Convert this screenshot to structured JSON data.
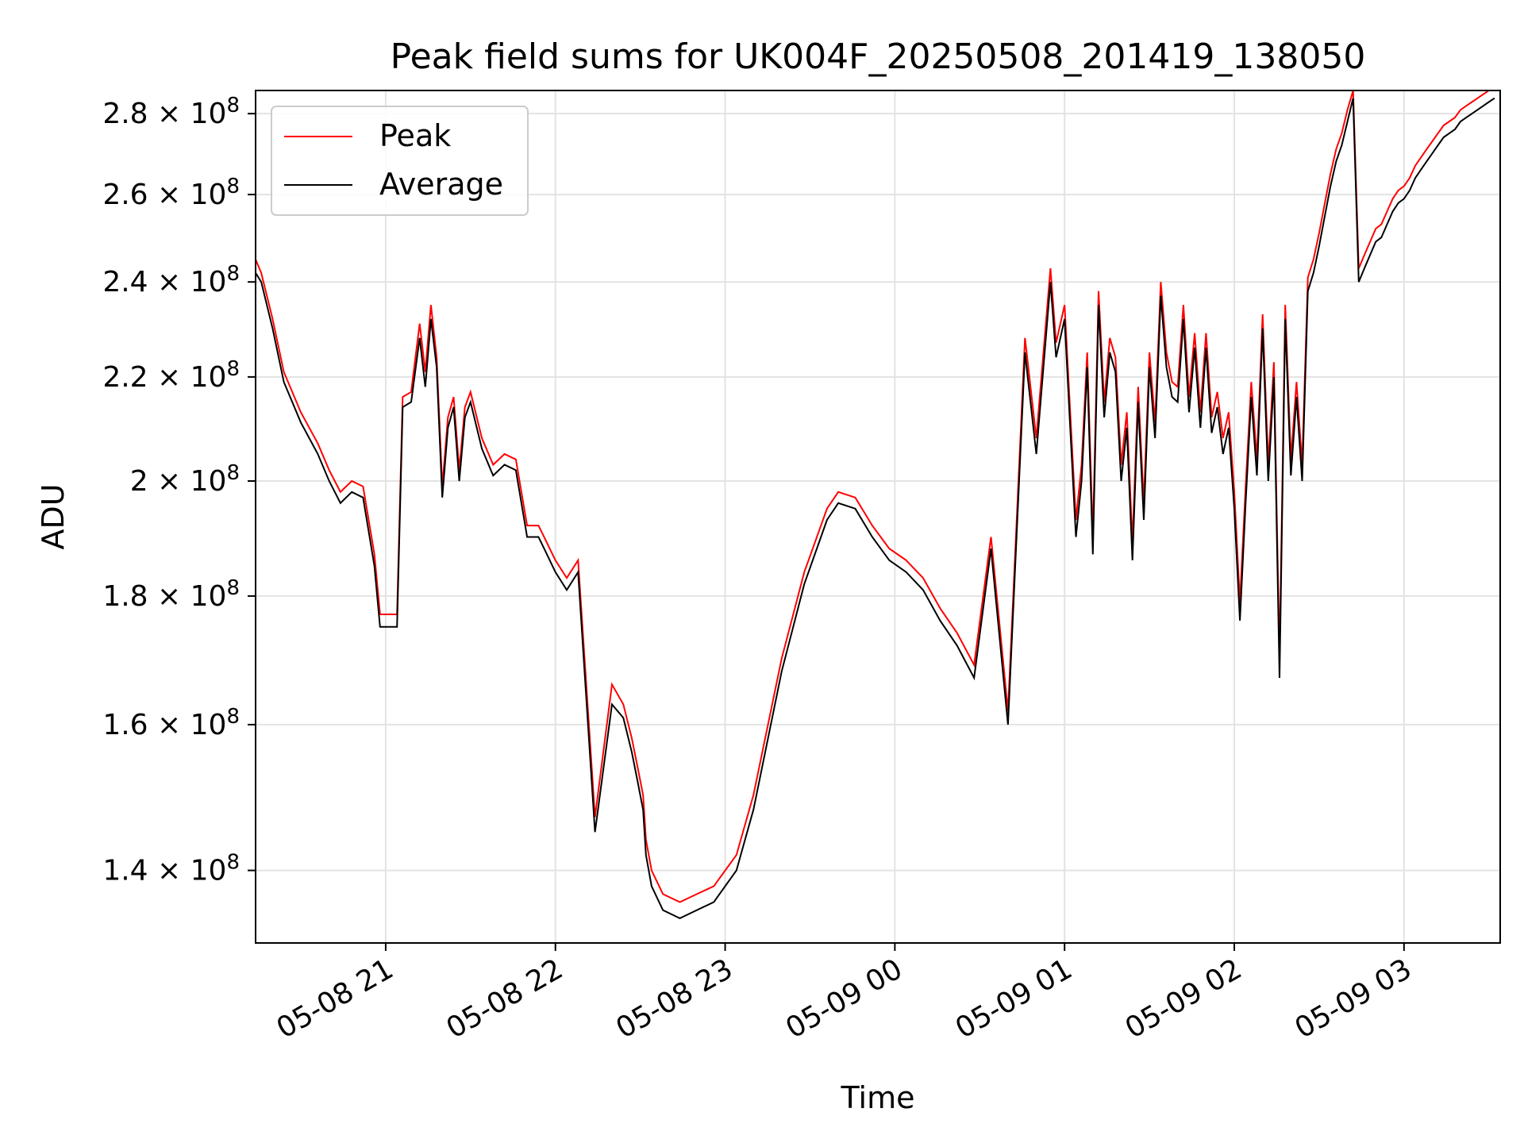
{
  "chart_data": {
    "type": "line",
    "title": "Peak field sums for UK004F_20250508_201419_138050",
    "xlabel": "Time",
    "ylabel": "ADU",
    "y_scale": "log",
    "xlim": [
      "2025-05-08 20:14",
      "2025-05-09 03:34"
    ],
    "ylim": [
      131000000,
      286000000
    ],
    "grid": true,
    "legend_position": "upper-left",
    "x_ticks": [
      {
        "label": "05-08 21",
        "time": "2025-05-08 21:00"
      },
      {
        "label": "05-08 22",
        "time": "2025-05-08 22:00"
      },
      {
        "label": "05-08 23",
        "time": "2025-05-08 23:00"
      },
      {
        "label": "05-09 00",
        "time": "2025-05-09 00:00"
      },
      {
        "label": "05-09 01",
        "time": "2025-05-09 01:00"
      },
      {
        "label": "05-09 02",
        "time": "2025-05-09 02:00"
      },
      {
        "label": "05-09 03",
        "time": "2025-05-09 03:00"
      }
    ],
    "y_ticks": [
      {
        "mantissa": "1.4",
        "exp": "8",
        "value": 140000000
      },
      {
        "mantissa": "1.6",
        "exp": "8",
        "value": 160000000
      },
      {
        "mantissa": "1.8",
        "exp": "8",
        "value": 180000000
      },
      {
        "mantissa": "2",
        "exp": "8",
        "value": 200000000
      },
      {
        "mantissa": "2.2",
        "exp": "8",
        "value": 220000000
      },
      {
        "mantissa": "2.4",
        "exp": "8",
        "value": 240000000
      },
      {
        "mantissa": "2.6",
        "exp": "8",
        "value": 260000000
      },
      {
        "mantissa": "2.8",
        "exp": "8",
        "value": 280000000
      }
    ],
    "series": [
      {
        "name": "Peak",
        "color": "#ff0000"
      },
      {
        "name": "Average",
        "color": "#000000"
      }
    ],
    "x": [
      "2025-05-08 20:14",
      "2025-05-08 20:16",
      "2025-05-08 20:20",
      "2025-05-08 20:24",
      "2025-05-08 20:30",
      "2025-05-08 20:36",
      "2025-05-08 20:40",
      "2025-05-08 20:44",
      "2025-05-08 20:48",
      "2025-05-08 20:52",
      "2025-05-08 20:56",
      "2025-05-08 20:58",
      "2025-05-08 21:04",
      "2025-05-08 21:06",
      "2025-05-08 21:09",
      "2025-05-08 21:12",
      "2025-05-08 21:14",
      "2025-05-08 21:16",
      "2025-05-08 21:18",
      "2025-05-08 21:20",
      "2025-05-08 21:22",
      "2025-05-08 21:24",
      "2025-05-08 21:26",
      "2025-05-08 21:28",
      "2025-05-08 21:30",
      "2025-05-08 21:34",
      "2025-05-08 21:38",
      "2025-05-08 21:42",
      "2025-05-08 21:46",
      "2025-05-08 21:50",
      "2025-05-08 21:54",
      "2025-05-08 21:56",
      "2025-05-08 22:00",
      "2025-05-08 22:04",
      "2025-05-08 22:08",
      "2025-05-08 22:14",
      "2025-05-08 22:20",
      "2025-05-08 22:24",
      "2025-05-08 22:27",
      "2025-05-08 22:29",
      "2025-05-08 22:31",
      "2025-05-08 22:32",
      "2025-05-08 22:34",
      "2025-05-08 22:38",
      "2025-05-08 22:44",
      "2025-05-08 22:50",
      "2025-05-08 22:56",
      "2025-05-08 23:04",
      "2025-05-08 23:10",
      "2025-05-08 23:20",
      "2025-05-08 23:28",
      "2025-05-08 23:36",
      "2025-05-08 23:40",
      "2025-05-08 23:46",
      "2025-05-08 23:52",
      "2025-05-08 23:58",
      "2025-05-09 00:04",
      "2025-05-09 00:10",
      "2025-05-09 00:16",
      "2025-05-09 00:22",
      "2025-05-09 00:28",
      "2025-05-09 00:34",
      "2025-05-09 00:40",
      "2025-05-09 00:46",
      "2025-05-09 00:50",
      "2025-05-09 00:55",
      "2025-05-09 00:57",
      "2025-05-09 01:00",
      "2025-05-09 01:02",
      "2025-05-09 01:04",
      "2025-05-09 01:06",
      "2025-05-09 01:08",
      "2025-05-09 01:10",
      "2025-05-09 01:12",
      "2025-05-09 01:14",
      "2025-05-09 01:16",
      "2025-05-09 01:18",
      "2025-05-09 01:20",
      "2025-05-09 01:22",
      "2025-05-09 01:24",
      "2025-05-09 01:26",
      "2025-05-09 01:28",
      "2025-05-09 01:30",
      "2025-05-09 01:32",
      "2025-05-09 01:34",
      "2025-05-09 01:36",
      "2025-05-09 01:38",
      "2025-05-09 01:40",
      "2025-05-09 01:42",
      "2025-05-09 01:44",
      "2025-05-09 01:46",
      "2025-05-09 01:48",
      "2025-05-09 01:50",
      "2025-05-09 01:52",
      "2025-05-09 01:54",
      "2025-05-09 01:56",
      "2025-05-09 01:58",
      "2025-05-09 02:00",
      "2025-05-09 02:02",
      "2025-05-09 02:04",
      "2025-05-09 02:06",
      "2025-05-09 02:08",
      "2025-05-09 02:10",
      "2025-05-09 02:12",
      "2025-05-09 02:14",
      "2025-05-09 02:16",
      "2025-05-09 02:18",
      "2025-05-09 02:20",
      "2025-05-09 02:22",
      "2025-05-09 02:24",
      "2025-05-09 02:26",
      "2025-05-09 02:28",
      "2025-05-09 02:30",
      "2025-05-09 02:32",
      "2025-05-09 02:34",
      "2025-05-09 02:36",
      "2025-05-09 02:38",
      "2025-05-09 02:40",
      "2025-05-09 02:42",
      "2025-05-09 02:44",
      "2025-05-09 02:46",
      "2025-05-09 02:48",
      "2025-05-09 02:50",
      "2025-05-09 02:52",
      "2025-05-09 02:54",
      "2025-05-09 02:56",
      "2025-05-09 02:58",
      "2025-05-09 03:00",
      "2025-05-09 03:02",
      "2025-05-09 03:04",
      "2025-05-09 03:06",
      "2025-05-09 03:08",
      "2025-05-09 03:10",
      "2025-05-09 03:12",
      "2025-05-09 03:14",
      "2025-05-09 03:16",
      "2025-05-09 03:18",
      "2025-05-09 03:19",
      "2025-05-09 03:20",
      "2025-05-09 03:22",
      "2025-05-09 03:24",
      "2025-05-09 03:26",
      "2025-05-09 03:28",
      "2025-05-09 03:30",
      "2025-05-09 03:32",
      "2025-05-09 03:34"
    ],
    "average": [
      242000000,
      240000000,
      230000000,
      219000000,
      211000000,
      205000000,
      200000000,
      196000000,
      198000000,
      197000000,
      185000000,
      175000000,
      175000000,
      214000000,
      215000000,
      228000000,
      218000000,
      232000000,
      222000000,
      197000000,
      210000000,
      214000000,
      200000000,
      212000000,
      215000000,
      206000000,
      201000000,
      203000000,
      202000000,
      190000000,
      190000000,
      188000000,
      184000000,
      181000000,
      184000000,
      145000000,
      163000000,
      161000000,
      156000000,
      152000000,
      148000000,
      142000000,
      138000000,
      135000000,
      134000000,
      135000000,
      136000000,
      140000000,
      148000000,
      168000000,
      182000000,
      193000000,
      196000000,
      195000000,
      190000000,
      186000000,
      184000000,
      181000000,
      176000000,
      172000000,
      167000000,
      188000000,
      160000000,
      225000000,
      205000000,
      240000000,
      224000000,
      232000000,
      210000000,
      190000000,
      200000000,
      222000000,
      187000000,
      235000000,
      212000000,
      225000000,
      221000000,
      200000000,
      210000000,
      186000000,
      215000000,
      193000000,
      222000000,
      208000000,
      237000000,
      222000000,
      216000000,
      215000000,
      232000000,
      213000000,
      226000000,
      210000000,
      226000000,
      209000000,
      214000000,
      205000000,
      210000000,
      195000000,
      176000000,
      196000000,
      216000000,
      201000000,
      230000000,
      200000000,
      220000000,
      167000000,
      232000000,
      201000000,
      216000000,
      200000000,
      238000000,
      242000000,
      248000000,
      255000000,
      262000000,
      268000000,
      272000000,
      278000000,
      284000000,
      240000000,
      243000000,
      246000000,
      249000000,
      250000000,
      253000000,
      256000000,
      258000000,
      259000000,
      261000000,
      264000000,
      266000000,
      268000000,
      270000000,
      272000000,
      274000000,
      275000000,
      276000000,
      277000000,
      278000000,
      279000000,
      280000000,
      281000000,
      282000000,
      283000000,
      284000000
    ],
    "peak": [
      245000000,
      242000000,
      232000000,
      221000000,
      213000000,
      207000000,
      202000000,
      198000000,
      200000000,
      199000000,
      187000000,
      177000000,
      177000000,
      216000000,
      217000000,
      231000000,
      221000000,
      235000000,
      224000000,
      199000000,
      212000000,
      216000000,
      202000000,
      214000000,
      217000000,
      208000000,
      203000000,
      205000000,
      204000000,
      192000000,
      192000000,
      190000000,
      186000000,
      183000000,
      186000000,
      147000000,
      166000000,
      163000000,
      158000000,
      154000000,
      150000000,
      144000000,
      140000000,
      137000000,
      136000000,
      137000000,
      138000000,
      142000000,
      150000000,
      170000000,
      184000000,
      195000000,
      198000000,
      197000000,
      192000000,
      188000000,
      186000000,
      183000000,
      178000000,
      174000000,
      169000000,
      190000000,
      162000000,
      228000000,
      208000000,
      243000000,
      227000000,
      235000000,
      213000000,
      193000000,
      203000000,
      225000000,
      190000000,
      238000000,
      215000000,
      228000000,
      224000000,
      203000000,
      213000000,
      189000000,
      218000000,
      196000000,
      225000000,
      211000000,
      240000000,
      225000000,
      219000000,
      218000000,
      235000000,
      216000000,
      229000000,
      213000000,
      229000000,
      212000000,
      217000000,
      208000000,
      213000000,
      198000000,
      179000000,
      199000000,
      219000000,
      204000000,
      233000000,
      203000000,
      223000000,
      170000000,
      235000000,
      204000000,
      219000000,
      203000000,
      241000000,
      245000000,
      251000000,
      258000000,
      265000000,
      271000000,
      275000000,
      281000000,
      286000000,
      243000000,
      246000000,
      249000000,
      252000000,
      253000000,
      256000000,
      259000000,
      261000000,
      262000000,
      264000000,
      267000000,
      269000000,
      271000000,
      273000000,
      275000000,
      277000000,
      278000000,
      279000000,
      280000000,
      281000000,
      282000000,
      283000000,
      284000000,
      285000000,
      286000000,
      286000000
    ]
  }
}
